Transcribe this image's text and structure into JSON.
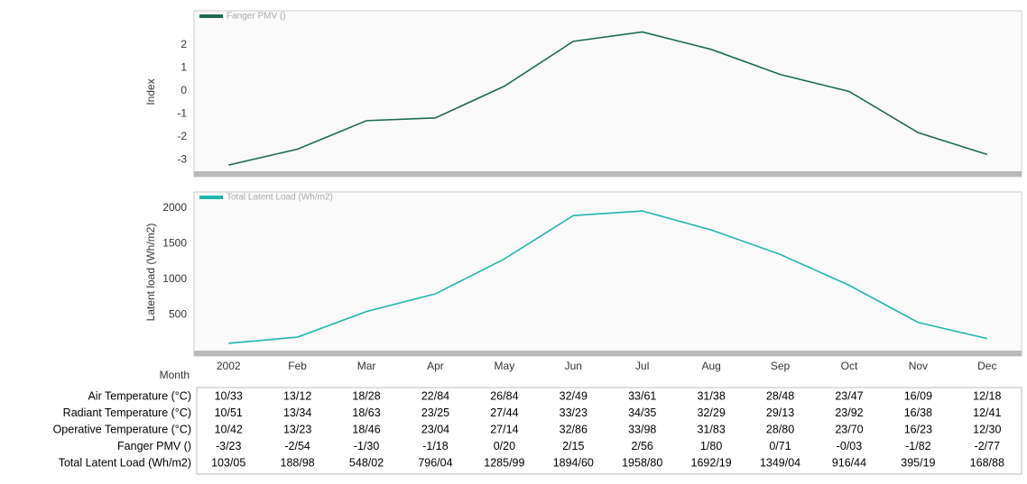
{
  "chart_data": [
    {
      "type": "line",
      "ylabel": "Index",
      "series": [
        {
          "name": "Fanger PMV ()",
          "color": "#1d6b4c",
          "values": [
            -3.23,
            -2.54,
            -1.3,
            -1.18,
            0.2,
            2.15,
            2.56,
            1.8,
            0.71,
            -0.03,
            -1.82,
            -2.77
          ]
        }
      ],
      "ylim": [
        -3.5,
        3.4
      ],
      "yticks": [
        -3,
        -2,
        -1,
        0,
        1,
        2
      ]
    },
    {
      "type": "line",
      "ylabel": "Latent load (Wh/m2)",
      "xlabel": "Month",
      "categories": [
        "2002",
        "Feb",
        "Mar",
        "Apr",
        "May",
        "Jun",
        "Jul",
        "Aug",
        "Sep",
        "Oct",
        "Nov",
        "Dec"
      ],
      "series": [
        {
          "name": "Total Latent Load (Wh/m2)",
          "color": "#22b5ae",
          "values": [
            103.05,
            188.98,
            548.02,
            796.04,
            1285.99,
            1894.6,
            1958.8,
            1692.19,
            1349.04,
            916.44,
            395.19,
            168.88
          ]
        }
      ],
      "ylim": [
        0,
        2200
      ],
      "yticks": [
        500,
        1000,
        1500,
        2000
      ]
    }
  ],
  "table": {
    "rows": [
      [
        "Air Temperature (°C)",
        "10/33",
        "13/12",
        "18/28",
        "22/84",
        "26/84",
        "32/49",
        "33/61",
        "31/38",
        "28/48",
        "23/47",
        "16/09",
        "12/18"
      ],
      [
        "Radiant Temperature (°C)",
        "10/51",
        "13/34",
        "18/63",
        "23/25",
        "27/44",
        "33/23",
        "34/35",
        "32/29",
        "29/13",
        "23/92",
        "16/38",
        "12/41"
      ],
      [
        "Operative Temperature (°C)",
        "10/42",
        "13/23",
        "18/46",
        "23/04",
        "27/14",
        "32/86",
        "33/98",
        "31/83",
        "28/80",
        "23/70",
        "16/23",
        "12/30"
      ],
      [
        "Fanger PMV ()",
        "-3/23",
        "-2/54",
        "-1/30",
        "-1/18",
        "0/20",
        "2/15",
        "2/56",
        "1/80",
        "0/71",
        "-0/03",
        "-1/82",
        "-2/77"
      ],
      [
        "Total Latent Load (Wh/m2)",
        "103/05",
        "188/98",
        "548/02",
        "796/04",
        "1285/99",
        "1894/60",
        "1958/80",
        "1692/19",
        "1349/04",
        "916/44",
        "395/19",
        "168/88"
      ]
    ]
  }
}
